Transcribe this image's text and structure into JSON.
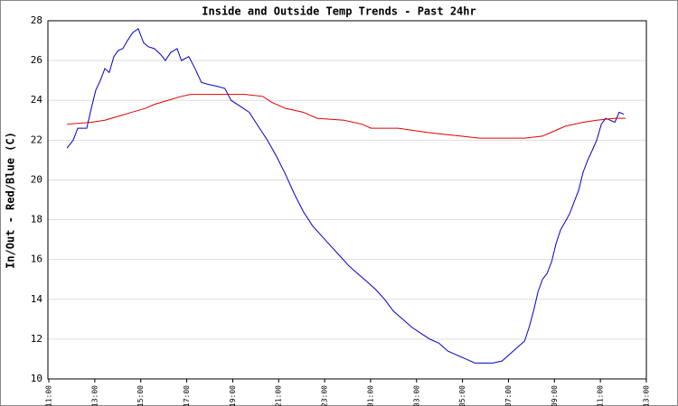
{
  "chart_data": {
    "type": "line",
    "title": "Inside and Outside Temp Trends - Past 24hr",
    "y_label": "In/Out - Red/Blue (C)",
    "xlim": [
      -0.04,
      26
    ],
    "xticks": [
      {
        "value": 0,
        "label": "11:00"
      },
      {
        "value": 2,
        "label": "13:00"
      },
      {
        "value": 4,
        "label": "15:00"
      },
      {
        "value": 6,
        "label": "17:00"
      },
      {
        "value": 8,
        "label": "19:00"
      },
      {
        "value": 10,
        "label": "21:00"
      },
      {
        "value": 12,
        "label": "23:00"
      },
      {
        "value": 14,
        "label": "01:00"
      },
      {
        "value": 16,
        "label": "03:00"
      },
      {
        "value": 18,
        "label": "05:00"
      },
      {
        "value": 20,
        "label": "07:00"
      },
      {
        "value": 22,
        "label": "09:00"
      },
      {
        "value": 24,
        "label": "11:00"
      },
      {
        "value": 26,
        "label": "13:00"
      }
    ],
    "ylim": [
      10,
      28
    ],
    "yticks": [
      10,
      12,
      14,
      16,
      18,
      20,
      22,
      24,
      26,
      28
    ],
    "grid": true,
    "series": [
      {
        "color": "#0000cc",
        "x": [
          0.79,
          1.06,
          1.26,
          1.65,
          1.85,
          2.04,
          2.24,
          2.44,
          2.63,
          2.83,
          3.02,
          3.22,
          3.42,
          3.65,
          3.89,
          4.12,
          4.32,
          4.59,
          4.87,
          5.07,
          5.3,
          5.58,
          5.77,
          6.09,
          6.36,
          6.64,
          6.95,
          7.34,
          7.66,
          7.93,
          8.33,
          8.72,
          9.11,
          9.51,
          9.9,
          10.29,
          10.68,
          11.08,
          11.47,
          11.86,
          12.25,
          12.65,
          13.04,
          13.43,
          13.83,
          14.22,
          14.61,
          15.0,
          15.4,
          15.79,
          16.18,
          16.58,
          16.97,
          17.36,
          17.75,
          18.15,
          18.54,
          18.93,
          19.32,
          19.72,
          20.11,
          20.5,
          20.7,
          20.9,
          21.09,
          21.29,
          21.48,
          21.68,
          21.88,
          22.07,
          22.27,
          22.47,
          22.66,
          22.86,
          23.06,
          23.25,
          23.45,
          23.65,
          23.84,
          24.04,
          24.23,
          24.43,
          24.63,
          24.82,
          25.02
        ],
        "values": [
          21.6,
          22.0,
          22.6,
          22.6,
          23.6,
          24.5,
          25.0,
          25.6,
          25.4,
          26.2,
          26.5,
          26.6,
          27.0,
          27.4,
          27.6,
          26.9,
          26.7,
          26.6,
          26.3,
          26.0,
          26.4,
          26.6,
          26.0,
          26.2,
          25.6,
          24.9,
          24.8,
          24.7,
          24.6,
          24.0,
          23.7,
          23.4,
          22.7,
          22.0,
          21.2,
          20.3,
          19.3,
          18.4,
          17.7,
          17.2,
          16.7,
          16.2,
          15.7,
          15.3,
          14.9,
          14.5,
          14.0,
          13.4,
          13.0,
          12.6,
          12.3,
          12.0,
          11.8,
          11.4,
          11.2,
          11.0,
          10.8,
          10.8,
          10.8,
          10.9,
          11.3,
          11.7,
          11.9,
          12.6,
          13.4,
          14.4,
          15.0,
          15.3,
          15.9,
          16.8,
          17.5,
          17.9,
          18.3,
          18.9,
          19.5,
          20.4,
          21.0,
          21.5,
          22.0,
          22.8,
          23.1,
          23.0,
          22.9,
          23.4,
          23.3
        ]
      },
      {
        "color": "#dd0000",
        "x": [
          0.79,
          1.85,
          2.44,
          3.02,
          3.61,
          4.2,
          4.6,
          5.18,
          5.77,
          6.17,
          7.34,
          8.52,
          9.31,
          9.7,
          10.29,
          11.08,
          11.67,
          12.84,
          13.63,
          14.02,
          15.2,
          16.38,
          17.16,
          17.95,
          18.73,
          20.7,
          21.48,
          21.88,
          22.47,
          23.25,
          23.84,
          24.63,
          25.1
        ],
        "values": [
          22.8,
          22.9,
          23.0,
          23.2,
          23.4,
          23.6,
          23.8,
          24.0,
          24.2,
          24.3,
          24.3,
          24.3,
          24.2,
          23.9,
          23.6,
          23.4,
          23.1,
          23.0,
          22.8,
          22.6,
          22.6,
          22.4,
          22.3,
          22.2,
          22.1,
          22.1,
          22.2,
          22.4,
          22.7,
          22.9,
          23.0,
          23.1,
          23.1
        ]
      }
    ]
  }
}
